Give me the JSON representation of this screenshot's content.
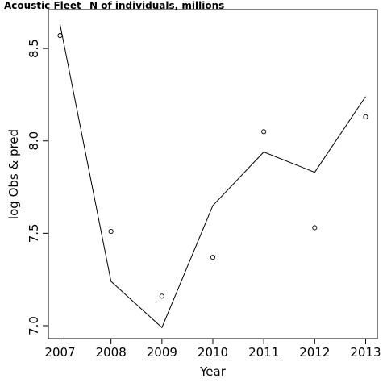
{
  "chart_data": {
    "type": "scatter",
    "title": "Acoustic Fleet",
    "subtitle": "N of individuals, millions",
    "xlabel": "Year",
    "ylabel": "log Obs & pred",
    "x": [
      2007,
      2008,
      2009,
      2010,
      2011,
      2012,
      2013
    ],
    "xlim": [
      2006.77,
      2013.23
    ],
    "ylim": [
      6.93,
      8.71
    ],
    "x_ticks": [
      "2007",
      "2008",
      "2009",
      "2010",
      "2011",
      "2012",
      "2013"
    ],
    "y_ticks": [
      7.0,
      7.5,
      8.0,
      8.5
    ],
    "y_tick_labels": [
      "7.0",
      "7.5",
      "8.0",
      "8.5"
    ],
    "series": [
      {
        "style": "points",
        "values": [
          8.57,
          7.51,
          7.16,
          7.37,
          8.05,
          7.53,
          8.13
        ]
      },
      {
        "style": "line",
        "values": [
          8.63,
          7.24,
          6.99,
          7.65,
          7.94,
          7.83,
          8.24
        ]
      }
    ],
    "grid": false,
    "legend": "none"
  }
}
